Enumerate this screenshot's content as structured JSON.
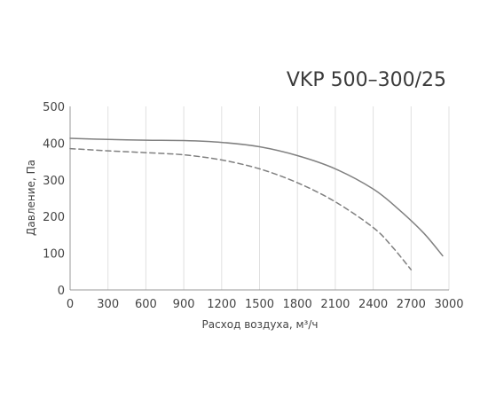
{
  "chart_data": {
    "type": "line",
    "title": "VKP 500–300/25",
    "xlabel": "Расход воздуха, м³/ч",
    "ylabel": "Давление, Па",
    "xlim": [
      0,
      3000
    ],
    "ylim": [
      0,
      500
    ],
    "x_ticks": [
      "0",
      "300",
      "600",
      "900",
      "1200",
      "1500",
      "1800",
      "2100",
      "2400",
      "2700",
      "3000"
    ],
    "y_ticks": [
      "0",
      "100",
      "200",
      "300",
      "400",
      "500"
    ],
    "grid": "vertical",
    "colors": {
      "solid": "#808080",
      "dashed": "#808080",
      "axis": "#999999",
      "grid": "#e0e0e0",
      "text": "#444444",
      "title": "#3a3a3a"
    },
    "series": [
      {
        "style": "solid",
        "x": [
          0,
          300,
          600,
          900,
          1200,
          1500,
          1800,
          2100,
          2400,
          2600,
          2800,
          2950
        ],
        "y": [
          413,
          410,
          408,
          407,
          402,
          390,
          366,
          330,
          275,
          220,
          155,
          93
        ]
      },
      {
        "style": "dashed",
        "x": [
          0,
          300,
          600,
          900,
          1200,
          1500,
          1800,
          2100,
          2400,
          2550,
          2700
        ],
        "y": [
          385,
          379,
          374,
          368,
          354,
          330,
          292,
          240,
          170,
          118,
          55
        ]
      }
    ]
  }
}
